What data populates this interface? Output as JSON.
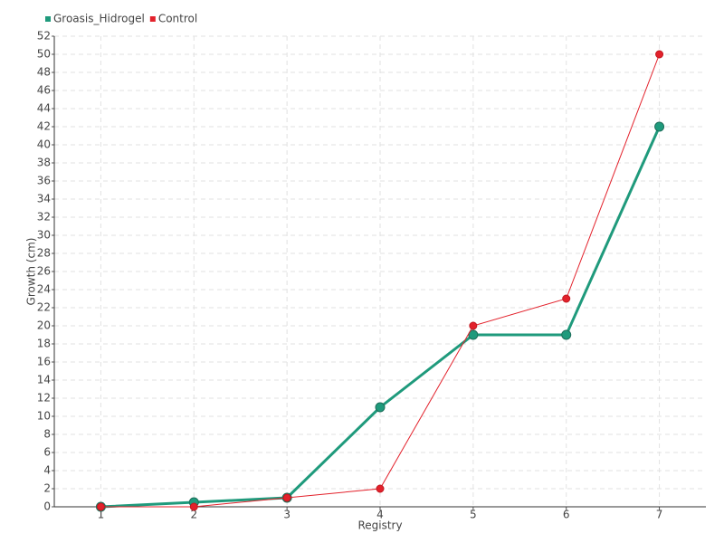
{
  "chart_data": {
    "type": "line",
    "x_label": "Registry",
    "y_label": "Growth (cm)",
    "categories": [
      "1",
      "2",
      "3",
      "4",
      "5",
      "6",
      "7"
    ],
    "series": [
      {
        "name": "Groasis_Hidrogel",
        "color": "#1f9a7c",
        "values": [
          0,
          0.5,
          1,
          11,
          19,
          19,
          42
        ]
      },
      {
        "name": "Control",
        "color": "#e3212b",
        "values": [
          0,
          0,
          1,
          2,
          20,
          23,
          50
        ]
      }
    ],
    "ylim": [
      0,
      52
    ],
    "yticks": [
      0,
      2,
      4,
      6,
      8,
      10,
      12,
      14,
      16,
      18,
      20,
      22,
      24,
      26,
      28,
      30,
      32,
      34,
      36,
      38,
      40,
      42,
      44,
      46,
      48,
      50,
      52
    ],
    "grid": true,
    "legend": "top-left"
  }
}
